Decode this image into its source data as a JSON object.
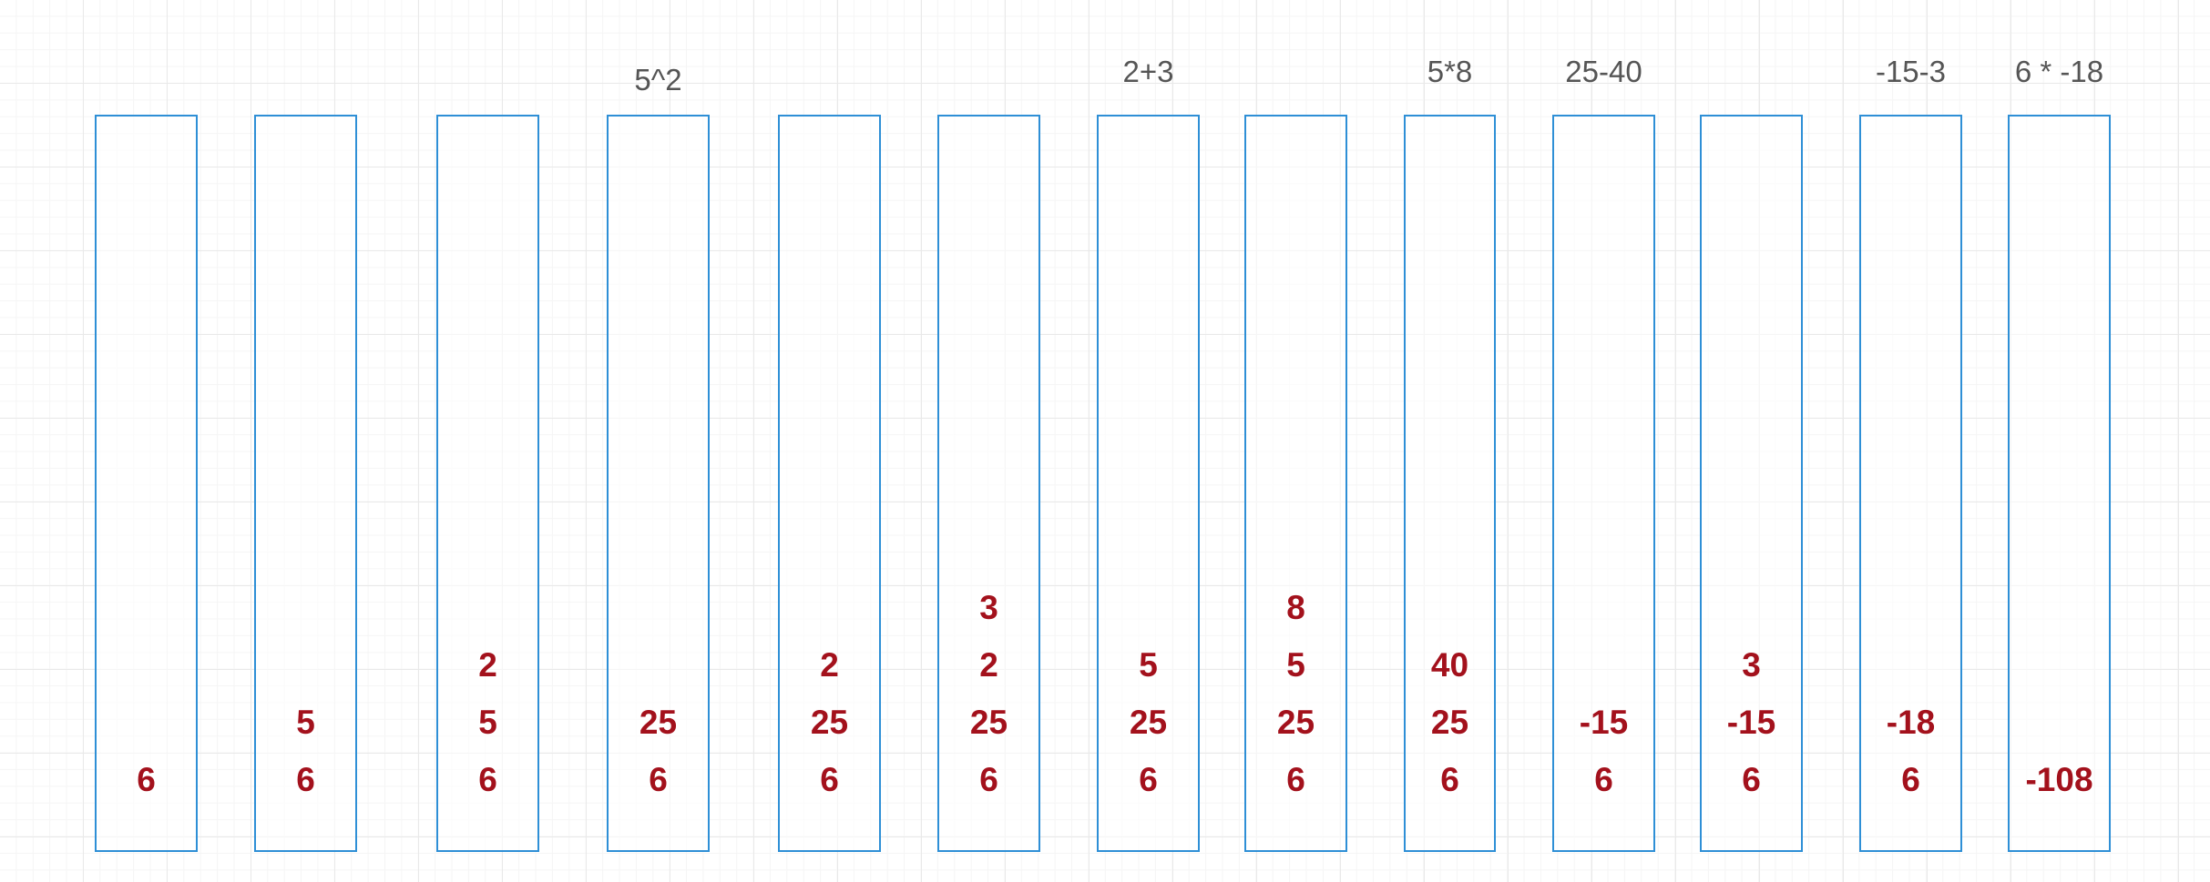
{
  "colors": {
    "box_border": "#2e8fd6",
    "value_text": "#a3111c",
    "caption_text": "#555555",
    "grid": "#e9e9e9"
  },
  "stacks": [
    {
      "caption": "",
      "items": [
        "6"
      ]
    },
    {
      "caption": "",
      "items": [
        "5",
        "6"
      ]
    },
    {
      "caption": "",
      "items": [
        "2",
        "5",
        "6"
      ]
    },
    {
      "caption": "5^2",
      "items": [
        "25",
        "6"
      ]
    },
    {
      "caption": "",
      "items": [
        "2",
        "25",
        "6"
      ]
    },
    {
      "caption": "",
      "items": [
        "3",
        "2",
        "25",
        "6"
      ]
    },
    {
      "caption": "2+3",
      "items": [
        "5",
        "25",
        "6"
      ]
    },
    {
      "caption": "",
      "items": [
        "8",
        "5",
        "25",
        "6"
      ]
    },
    {
      "caption": "5*8",
      "items": [
        "40",
        "25",
        "6"
      ]
    },
    {
      "caption": "25-40",
      "items": [
        "-15",
        "6"
      ]
    },
    {
      "caption": "",
      "items": [
        "3",
        "-15",
        "6"
      ]
    },
    {
      "caption": "-15-3",
      "items": [
        "-18",
        "6"
      ]
    },
    {
      "caption": "6 * -18",
      "items": [
        "-108"
      ]
    }
  ]
}
